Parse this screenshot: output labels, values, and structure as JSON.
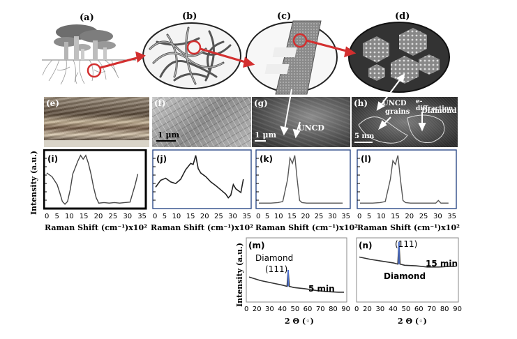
{
  "panels": {
    "a": "(a)",
    "b": "(b)",
    "c": "(c)",
    "d": "(d)",
    "e": "(e)",
    "f": "(f)",
    "g": "(g)",
    "h": "(h)",
    "i": "(i)",
    "j": "(j)",
    "k": "(k)",
    "l": "(l)",
    "m": "(m)",
    "n": "(n)"
  },
  "micrographs": {
    "f_scale": "1 μm",
    "g_scale": "1 μm",
    "g_label": "UNCD",
    "h_scale": "5 nm",
    "h_uncd": "UNCD",
    "h_grains": "grains",
    "h_ediff": "e-diffraction",
    "h_diamond": "Diamond"
  },
  "raman": {
    "ylabel": "Intensity (a.u.)",
    "xlabel": "Raman Shift (cm⁻¹)x10²",
    "xticks": [
      "0",
      "5",
      "10",
      "15",
      "20",
      "25",
      "30",
      "35"
    ]
  },
  "xrd": {
    "ylabel": "Intensity (a.u.)",
    "xlabel": "2 Θ (◦)",
    "xticks": [
      "0",
      "20",
      "30",
      "40",
      "50",
      "60",
      "70",
      "80",
      "90"
    ],
    "m_peak": "Diamond",
    "m_peak_hkl": "(111)",
    "m_time": "5 min",
    "n_peak_hkl": "(111)",
    "n_peak": "Diamond",
    "n_time": "15 min"
  },
  "chart_data": [
    {
      "type": "line",
      "panel": "i",
      "xlim": [
        0,
        37
      ],
      "xlabel": "Raman Shift (cm⁻¹)x10²",
      "ylabel": "Intensity (a.u.)",
      "x": [
        0,
        2,
        4,
        5,
        6,
        7,
        8,
        9,
        10,
        12,
        13,
        14,
        15,
        16,
        17,
        18,
        19,
        20,
        22,
        24,
        26,
        28,
        30,
        32,
        34,
        35
      ],
      "y": [
        0.62,
        0.55,
        0.4,
        0.25,
        0.08,
        0.03,
        0.08,
        0.3,
        0.6,
        0.85,
        0.95,
        0.88,
        0.95,
        0.8,
        0.6,
        0.35,
        0.15,
        0.05,
        0.06,
        0.05,
        0.06,
        0.05,
        0.06,
        0.07,
        0.4,
        0.6
      ]
    },
    {
      "type": "line",
      "panel": "j",
      "xlim": [
        0,
        37
      ],
      "xlabel": "Raman Shift (cm⁻¹)x10²",
      "ylabel": "",
      "x": [
        0,
        2,
        4,
        6,
        8,
        10,
        12,
        14,
        15,
        16,
        17,
        18,
        20,
        22,
        24,
        26,
        28,
        29,
        30,
        31,
        32,
        34,
        35
      ],
      "y": [
        0.35,
        0.48,
        0.52,
        0.45,
        0.42,
        0.5,
        0.68,
        0.8,
        0.78,
        0.95,
        0.7,
        0.62,
        0.55,
        0.45,
        0.38,
        0.3,
        0.22,
        0.15,
        0.2,
        0.4,
        0.32,
        0.25,
        0.5
      ]
    },
    {
      "type": "line",
      "panel": "k",
      "xlim": [
        0,
        37
      ],
      "xlabel": "Raman Shift (cm⁻¹)x10²",
      "ylabel": "",
      "x": [
        0,
        5,
        8,
        10,
        12,
        13,
        14,
        15,
        16,
        17,
        18,
        20,
        25,
        30,
        35
      ],
      "y": [
        0.05,
        0.05,
        0.06,
        0.08,
        0.5,
        0.9,
        0.8,
        0.95,
        0.5,
        0.1,
        0.06,
        0.05,
        0.05,
        0.05,
        0.05
      ]
    },
    {
      "type": "line",
      "panel": "l",
      "xlim": [
        0,
        37
      ],
      "xlabel": "Raman Shift (cm⁻¹)x10²",
      "ylabel": "",
      "x": [
        0,
        5,
        8,
        10,
        12,
        13,
        14,
        15,
        16,
        17,
        18,
        20,
        25,
        30,
        31,
        32,
        35
      ],
      "y": [
        0.05,
        0.05,
        0.06,
        0.08,
        0.5,
        0.85,
        0.78,
        0.95,
        0.5,
        0.1,
        0.06,
        0.05,
        0.05,
        0.05,
        0.1,
        0.05,
        0.05
      ]
    },
    {
      "type": "line",
      "panel": "m",
      "xlim": [
        10,
        95
      ],
      "xlabel": "2 Θ (◦)",
      "ylabel": "Intensity (a.u.)",
      "x": [
        10,
        20,
        30,
        40,
        44,
        45,
        46,
        50,
        60,
        70,
        80,
        90,
        95
      ],
      "y": [
        0.38,
        0.32,
        0.28,
        0.24,
        0.22,
        0.5,
        0.22,
        0.2,
        0.18,
        0.15,
        0.13,
        0.12,
        0.12
      ]
    },
    {
      "type": "line",
      "panel": "n",
      "xlim": [
        10,
        95
      ],
      "xlabel": "2 Θ (◦)",
      "ylabel": "",
      "x": [
        10,
        20,
        30,
        40,
        44,
        45,
        46,
        50,
        60,
        70,
        80,
        90,
        95
      ],
      "y": [
        0.72,
        0.68,
        0.65,
        0.62,
        0.6,
        0.98,
        0.6,
        0.58,
        0.57,
        0.55,
        0.55,
        0.56,
        0.56
      ]
    }
  ]
}
